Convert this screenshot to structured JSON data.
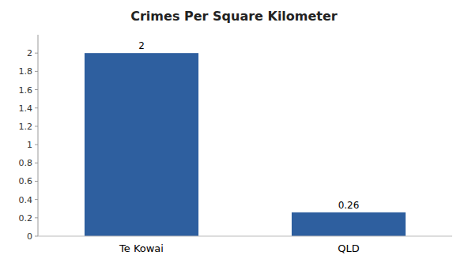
{
  "chart_data": {
    "type": "bar",
    "title": "Crimes Per Square Kilometer",
    "categories": [
      "Te Kowai",
      "QLD"
    ],
    "values": [
      2,
      0.26
    ],
    "color": "#2e5f9f",
    "ylim": [
      0,
      2.2
    ],
    "yticks": [
      0,
      0.2,
      0.4,
      0.6,
      0.8,
      1,
      1.2,
      1.4,
      1.6,
      1.8,
      2
    ],
    "grid": false,
    "data_labels": true
  }
}
